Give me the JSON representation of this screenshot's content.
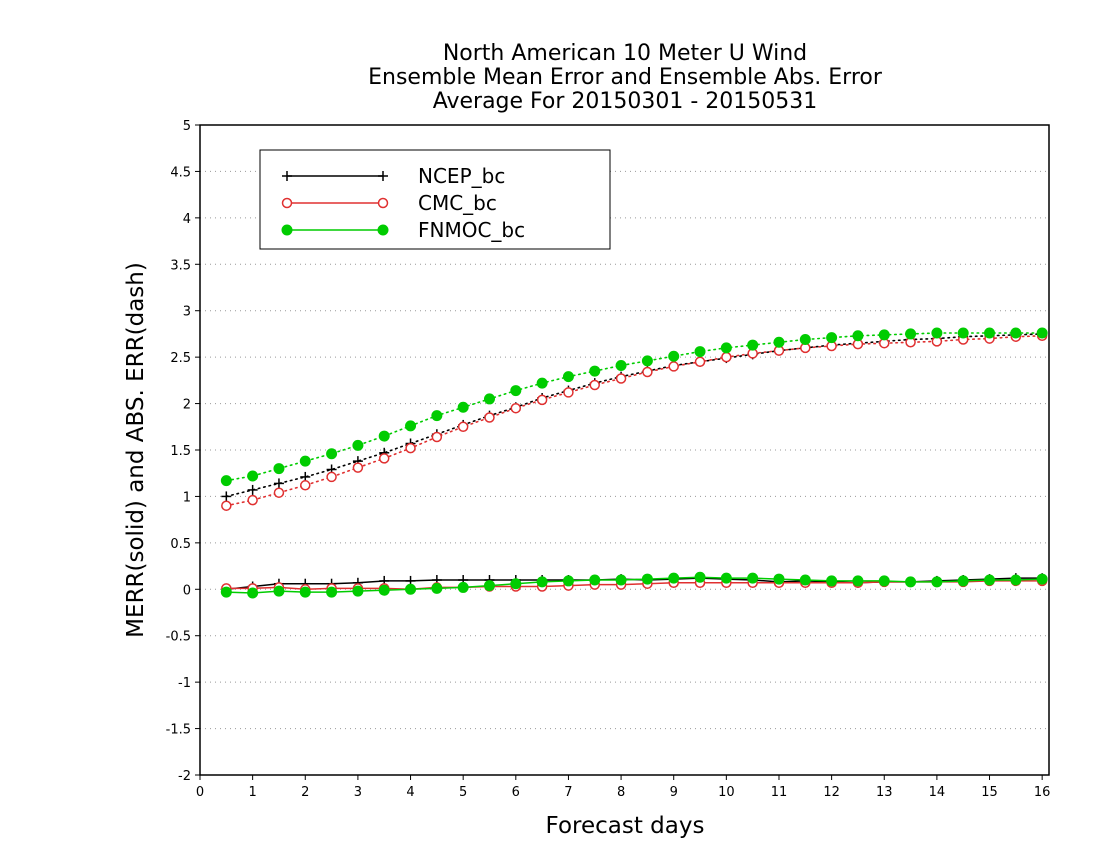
{
  "chart_data": {
    "type": "line",
    "title_lines": [
      "North American 10 Meter U Wind",
      "Ensemble Mean Error and Ensemble Abs. Error",
      "Average For 20150301 - 20150531"
    ],
    "xlabel": "Forecast days",
    "ylabel": "MERR(solid) and ABS. ERR(dash)",
    "xlim": [
      0,
      16.13
    ],
    "ylim": [
      -2,
      5
    ],
    "xticks": [
      "0",
      "1",
      "2",
      "3",
      "4",
      "5",
      "6",
      "7",
      "8",
      "9",
      "10",
      "11",
      "12",
      "13",
      "14",
      "15",
      "16"
    ],
    "yticks": [
      "-2",
      "-1.5",
      "-1",
      "-0.5",
      "0",
      "0.5",
      "1",
      "1.5",
      "2",
      "2.5",
      "3",
      "3.5",
      "4",
      "4.5",
      "5"
    ],
    "grid": "horizontal dotted",
    "legend_position": "top-left",
    "x": [
      0.5,
      1,
      1.5,
      2,
      2.5,
      3,
      3.5,
      4,
      4.5,
      5,
      5.5,
      6,
      6.5,
      7,
      7.5,
      8,
      8.5,
      9,
      9.5,
      10,
      10.5,
      11,
      11.5,
      12,
      12.5,
      13,
      13.5,
      14,
      14.5,
      15,
      15.5,
      16
    ],
    "series": [
      {
        "name": "NCEP_bc",
        "color": "#000000",
        "marker": "plus",
        "merr": [
          0.0,
          0.03,
          0.06,
          0.06,
          0.06,
          0.07,
          0.09,
          0.09,
          0.1,
          0.1,
          0.1,
          0.1,
          0.1,
          0.1,
          0.1,
          0.11,
          0.1,
          0.11,
          0.12,
          0.11,
          0.1,
          0.08,
          0.09,
          0.08,
          0.07,
          0.08,
          0.08,
          0.09,
          0.1,
          0.11,
          0.12,
          0.12
        ],
        "abserr": [
          1.0,
          1.07,
          1.14,
          1.21,
          1.29,
          1.38,
          1.47,
          1.57,
          1.67,
          1.77,
          1.87,
          1.96,
          2.06,
          2.14,
          2.22,
          2.29,
          2.35,
          2.41,
          2.45,
          2.49,
          2.53,
          2.57,
          2.6,
          2.63,
          2.65,
          2.67,
          2.69,
          2.7,
          2.72,
          2.73,
          2.74,
          2.75
        ]
      },
      {
        "name": "CMC_bc",
        "color": "#e03030",
        "marker": "open-circle",
        "merr": [
          0.01,
          0.01,
          0.02,
          0.0,
          0.01,
          0.01,
          0.01,
          0.0,
          0.02,
          0.02,
          0.03,
          0.03,
          0.03,
          0.04,
          0.05,
          0.05,
          0.06,
          0.07,
          0.07,
          0.07,
          0.07,
          0.07,
          0.07,
          0.07,
          0.07,
          0.08,
          0.08,
          0.08,
          0.08,
          0.09,
          0.09,
          0.09
        ],
        "abserr": [
          0.9,
          0.96,
          1.04,
          1.12,
          1.21,
          1.31,
          1.41,
          1.52,
          1.64,
          1.75,
          1.85,
          1.95,
          2.04,
          2.12,
          2.2,
          2.27,
          2.34,
          2.4,
          2.45,
          2.5,
          2.54,
          2.57,
          2.6,
          2.62,
          2.64,
          2.65,
          2.66,
          2.67,
          2.69,
          2.7,
          2.72,
          2.73
        ]
      },
      {
        "name": "FNMOC_bc",
        "color": "#00cc00",
        "marker": "filled-circle",
        "merr": [
          -0.03,
          -0.04,
          -0.02,
          -0.03,
          -0.03,
          -0.02,
          -0.01,
          0.0,
          0.01,
          0.02,
          0.04,
          0.06,
          0.08,
          0.09,
          0.1,
          0.1,
          0.11,
          0.12,
          0.13,
          0.12,
          0.12,
          0.11,
          0.1,
          0.09,
          0.09,
          0.09,
          0.08,
          0.08,
          0.09,
          0.1,
          0.1,
          0.11
        ],
        "abserr": [
          1.17,
          1.22,
          1.3,
          1.38,
          1.46,
          1.55,
          1.65,
          1.76,
          1.87,
          1.96,
          2.05,
          2.14,
          2.22,
          2.29,
          2.35,
          2.41,
          2.46,
          2.51,
          2.56,
          2.6,
          2.63,
          2.66,
          2.69,
          2.71,
          2.73,
          2.74,
          2.75,
          2.76,
          2.76,
          2.76,
          2.76,
          2.76
        ]
      }
    ]
  }
}
